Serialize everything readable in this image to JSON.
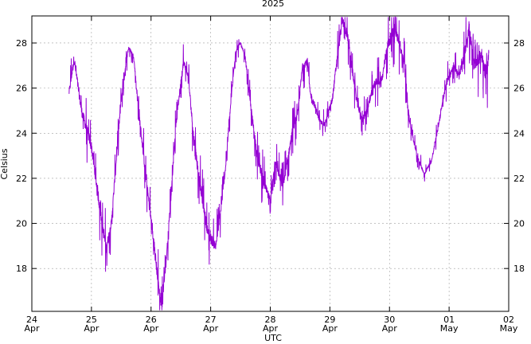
{
  "chart_data": {
    "type": "line",
    "title": "2025",
    "xlabel": "UTC",
    "ylabel": "Celsius",
    "ylim": [
      16.1,
      29.2
    ],
    "yticks": [
      18,
      20,
      22,
      24,
      26,
      28
    ],
    "grid": true,
    "x_axis_kind": "date",
    "xlim": [
      "2025-04-24",
      "2025-05-02"
    ],
    "xticks": [
      {
        "day": "24",
        "month": "Apr"
      },
      {
        "day": "25",
        "month": "Apr"
      },
      {
        "day": "26",
        "month": "Apr"
      },
      {
        "day": "27",
        "month": "Apr"
      },
      {
        "day": "28",
        "month": "Apr"
      },
      {
        "day": "29",
        "month": "Apr"
      },
      {
        "day": "30",
        "month": "Apr"
      },
      {
        "day": "01",
        "month": "May"
      },
      {
        "day": "02",
        "month": "May"
      }
    ],
    "series": [
      {
        "color": "#9400d3",
        "x": [
          "2025-04-24 15:00",
          "2025-04-24 17:00",
          "2025-04-24 20:00",
          "2025-04-25 00:00",
          "2025-04-25 03:00",
          "2025-04-25 05:00",
          "2025-04-25 06:00",
          "2025-04-25 08:00",
          "2025-04-25 10:00",
          "2025-04-25 12:00",
          "2025-04-25 14:00",
          "2025-04-25 15:00",
          "2025-04-25 17:00",
          "2025-04-25 19:00",
          "2025-04-25 22:00",
          "2025-04-26 01:00",
          "2025-04-26 03:00",
          "2025-04-26 04:00",
          "2025-04-26 06:00",
          "2025-04-26 08:00",
          "2025-04-26 10:00",
          "2025-04-26 13:00",
          "2025-04-26 15:00",
          "2025-04-26 17:00",
          "2025-04-26 20:00",
          "2025-04-26 23:00",
          "2025-04-27 02:00",
          "2025-04-27 04:00",
          "2025-04-27 06:00",
          "2025-04-27 08:00",
          "2025-04-27 10:00",
          "2025-04-27 12:00",
          "2025-04-27 14:00",
          "2025-04-27 16:00",
          "2025-04-27 19:00",
          "2025-04-27 22:00",
          "2025-04-28 00:00",
          "2025-04-28 02:00",
          "2025-04-28 03:00",
          "2025-04-28 05:00",
          "2025-04-28 07:00",
          "2025-04-28 09:00",
          "2025-04-28 11:00",
          "2025-04-28 13:00",
          "2025-04-28 15:00",
          "2025-04-28 16:00",
          "2025-04-28 18:00",
          "2025-04-28 20:00",
          "2025-04-28 22:00",
          "2025-04-29 01:00",
          "2025-04-29 03:00",
          "2025-04-29 05:00",
          "2025-04-29 07:00",
          "2025-04-29 09:00",
          "2025-04-29 11:00",
          "2025-04-29 13:00",
          "2025-04-29 15:00",
          "2025-04-29 18:00",
          "2025-04-29 21:00",
          "2025-04-29 23:00",
          "2025-04-30 02:00",
          "2025-04-30 04:00",
          "2025-04-30 06:00",
          "2025-04-30 08:00",
          "2025-04-30 11:00",
          "2025-04-30 14:00",
          "2025-04-30 17:00",
          "2025-04-30 20:00",
          "2025-04-30 23:00",
          "2025-05-01 02:00",
          "2025-05-01 04:00",
          "2025-05-01 06:00",
          "2025-05-01 08:00",
          "2025-05-01 10:00",
          "2025-05-01 13:00",
          "2025-05-01 15:00",
          "2025-05-01 16:00"
        ],
        "y": [
          25.8,
          27.3,
          25.0,
          23.4,
          21.0,
          19.5,
          18.9,
          20.0,
          22.8,
          25.5,
          27.2,
          27.8,
          27.4,
          25.0,
          22.0,
          19.2,
          17.3,
          16.4,
          18.2,
          21.2,
          24.4,
          27.2,
          26.5,
          24.0,
          21.5,
          19.5,
          19.0,
          20.5,
          22.5,
          25.2,
          27.6,
          28.0,
          27.3,
          25.3,
          22.8,
          21.6,
          21.0,
          22.8,
          22.4,
          21.6,
          22.8,
          24.2,
          24.8,
          27.0,
          27.2,
          25.8,
          25.2,
          24.5,
          24.4,
          25.5,
          27.4,
          29.0,
          28.4,
          26.8,
          25.3,
          24.6,
          25.0,
          26.2,
          26.4,
          27.8,
          28.7,
          28.0,
          27.0,
          24.6,
          23.0,
          22.2,
          22.8,
          24.5,
          26.3,
          27.0,
          26.5,
          27.4,
          28.7,
          27.0,
          27.5,
          26.5,
          27.5
        ],
        "noise": [
          0.6,
          0.9,
          0.9,
          1.0,
          1.2,
          1.1,
          1.0,
          0.7,
          0.6,
          0.5,
          0.4,
          0.3,
          0.4,
          0.7,
          0.9,
          1.1,
          1.0,
          0.8,
          0.7,
          0.6,
          0.6,
          0.6,
          0.6,
          0.8,
          0.9,
          1.0,
          0.9,
          0.7,
          0.6,
          0.5,
          0.4,
          0.3,
          0.4,
          0.6,
          0.8,
          0.8,
          0.7,
          0.7,
          0.8,
          0.7,
          0.7,
          0.7,
          0.7,
          0.7,
          0.6,
          0.6,
          0.5,
          0.4,
          0.4,
          0.6,
          0.8,
          0.9,
          0.9,
          0.8,
          0.6,
          0.5,
          0.6,
          0.7,
          0.8,
          1.0,
          1.1,
          1.0,
          0.9,
          0.5,
          0.3,
          0.3,
          0.3,
          0.4,
          0.5,
          0.5,
          0.6,
          0.9,
          1.2,
          1.0,
          1.2,
          1.4,
          1.2
        ]
      }
    ]
  }
}
